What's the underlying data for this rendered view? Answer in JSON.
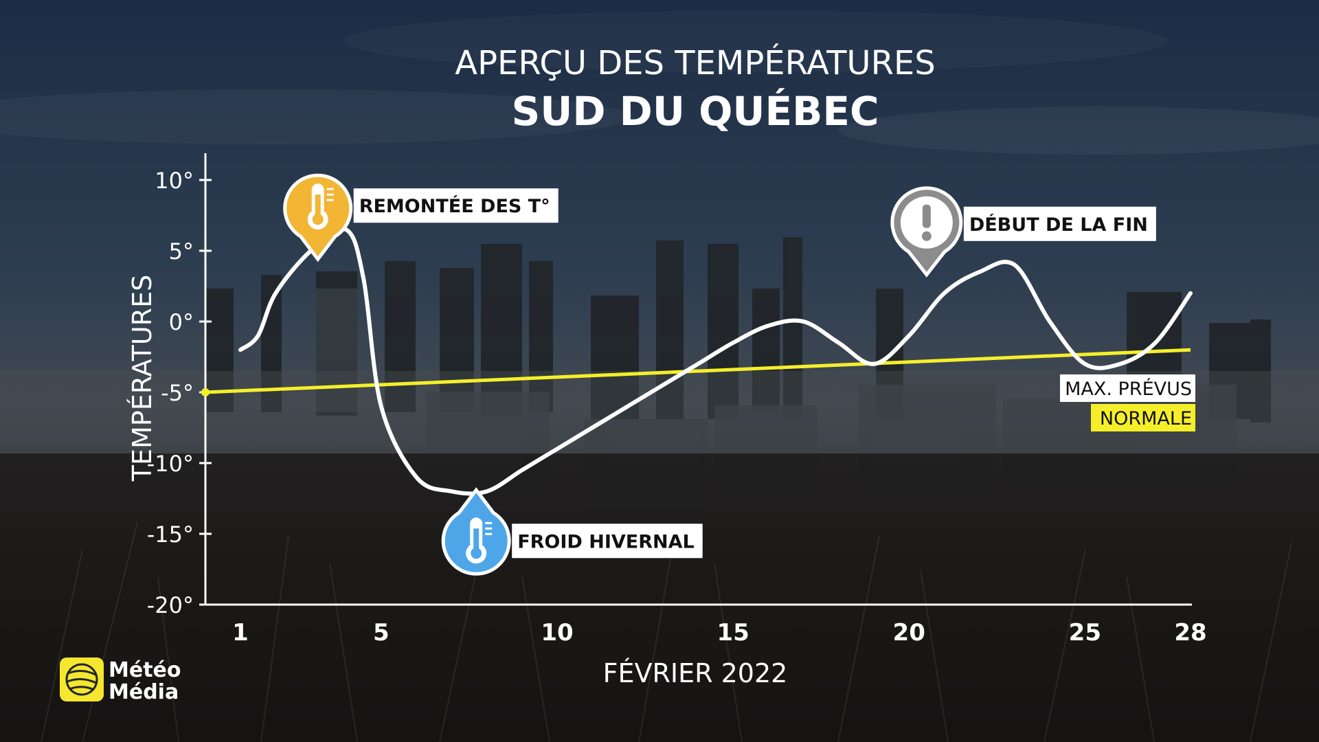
{
  "colors": {
    "sky_top": "#253a55",
    "sky_bottom": "#5b6d80",
    "curve": "#ffffff",
    "normal_line": "#f5ef2a",
    "warm_badge": "#f2b534",
    "cold_badge": "#4ea6e8",
    "alert_badge": "#8c8c8c",
    "label_bg": "#ffffff",
    "logo": "#f5e62e"
  },
  "icons": {
    "warm": "thermometer-icon",
    "cold": "thermometer-icon",
    "alert": "exclamation-icon",
    "logo": "globe-icon"
  },
  "chart_data": {
    "type": "line",
    "title": "APERÇU DES TEMPÉRATURES",
    "subtitle": "SUD DU QUÉBEC",
    "xlabel": "FÉVRIER 2022",
    "ylabel": "TEMPÉRATURES",
    "xlim": [
      1,
      28
    ],
    "ylim": [
      -20,
      10
    ],
    "x_ticks": [
      1,
      5,
      10,
      15,
      20,
      25,
      28
    ],
    "y_ticks": [
      10,
      5,
      0,
      -5,
      -10,
      -15,
      -20
    ],
    "y_tick_labels": [
      "10°",
      "5°",
      "0°",
      "-5°",
      "-10°",
      "-15°",
      "-20°"
    ],
    "series": [
      {
        "name": "MAX. PRÉVUS",
        "x": [
          1,
          1.5,
          2,
          3,
          4,
          4.5,
          5,
          6,
          7,
          8,
          9,
          10,
          11,
          12,
          13,
          14,
          15,
          16,
          17,
          18,
          19,
          20,
          21,
          22,
          23,
          24,
          25,
          26,
          27,
          28
        ],
        "values": [
          -2,
          -1,
          2,
          5,
          6.5,
          3,
          -6,
          -11,
          -12,
          -12,
          -10.5,
          -9,
          -7.5,
          -6,
          -4.5,
          -3,
          -1.5,
          -0.3,
          0,
          -1.5,
          -3,
          -1,
          2,
          3.5,
          4,
          0,
          -3,
          -3,
          -1.5,
          2
        ]
      },
      {
        "name": "NORMALE",
        "x": [
          0,
          28
        ],
        "values": [
          -5,
          -2
        ]
      }
    ],
    "annotations": [
      {
        "text": "REMONTÉE DES T°",
        "x": 3.2,
        "y": 8,
        "kind": "warm"
      },
      {
        "text": "FROID HIVERNAL",
        "x": 7.7,
        "y": -15.5,
        "kind": "cold"
      },
      {
        "text": "DÉBUT DE LA FIN",
        "x": 20.5,
        "y": 7,
        "kind": "alert"
      }
    ],
    "legend": {
      "placement": "bottom-right",
      "entries": [
        "MAX. PRÉVUS",
        "NORMALE"
      ]
    }
  },
  "brand": {
    "line1": "Météo",
    "line2": "Média"
  }
}
